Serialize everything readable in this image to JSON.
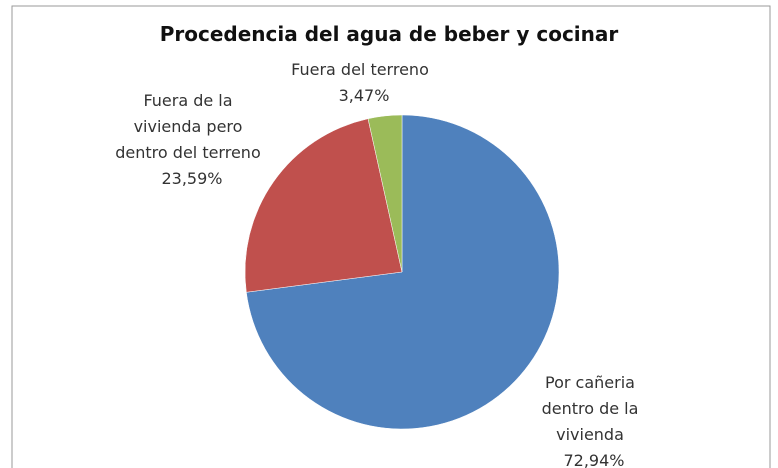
{
  "chart_data": {
    "type": "pie",
    "title": "Procedencia del agua de beber y cocinar",
    "categories": [
      "Por cañeria dentro de la vivienda",
      "Fuera de la vivienda pero dentro del terreno",
      "Fuera del terreno"
    ],
    "values": [
      72.94,
      23.59,
      3.47
    ],
    "value_labels": [
      "72,94%",
      "23,59%",
      "3,47%"
    ],
    "colors": [
      "#4f81bd",
      "#c0504d",
      "#9bbb59"
    ]
  }
}
